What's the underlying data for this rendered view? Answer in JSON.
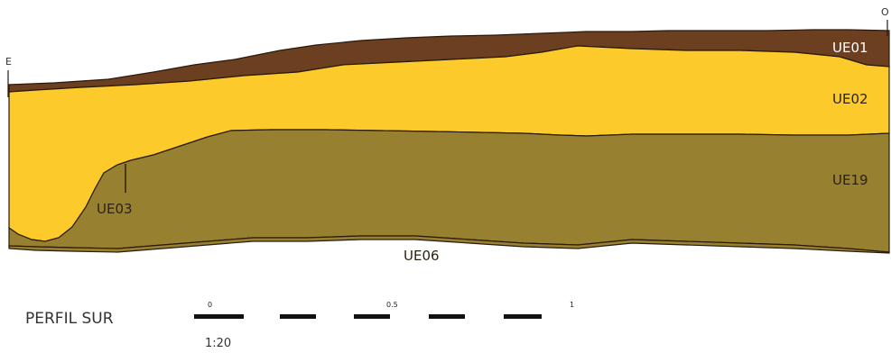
{
  "orientation": {
    "left": "E",
    "right": "O"
  },
  "units": [
    {
      "id": "UE01",
      "color": "#6b3f1f"
    },
    {
      "id": "UE02",
      "color": "#fcca2a"
    },
    {
      "id": "UE03",
      "color": "#fcca2a"
    },
    {
      "id": "UE19",
      "color": "#978030"
    },
    {
      "id": "UE06",
      "color": "#978030"
    }
  ],
  "title": "PERFIL SUR",
  "scale": {
    "ticks": [
      "0",
      "0.5",
      "1"
    ],
    "ratio": "1:20"
  }
}
